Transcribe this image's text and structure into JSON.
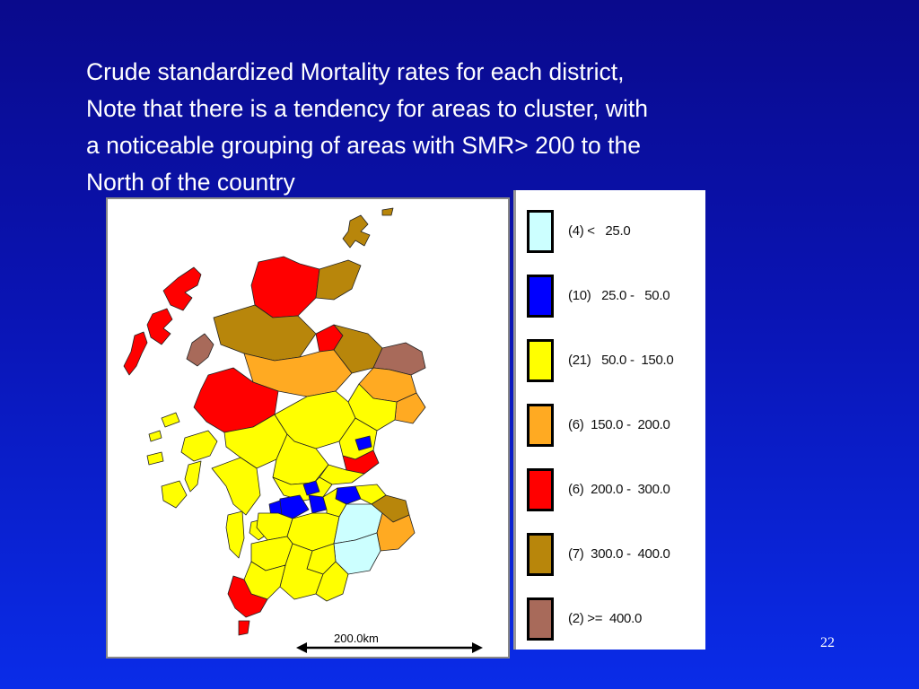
{
  "slide": {
    "caption_lines": [
      "Crude standardized Mortality rates for each district,",
      "Note that there is a tendency for areas to cluster, with",
      "a noticeable grouping of areas with SMR> 200 to the",
      "North of the country"
    ],
    "page_number": "22"
  },
  "map": {
    "scale_label": "200.0km"
  },
  "legend": {
    "items": [
      {
        "label": "(4) <   25.0",
        "color": "#ccffff"
      },
      {
        "label": "(10)   25.0 -   50.0",
        "color": "#0000ff"
      },
      {
        "label": "(21)   50.0 -  150.0",
        "color": "#ffff00"
      },
      {
        "label": "(6)  150.0 -  200.0",
        "color": "#ffaa22"
      },
      {
        "label": "(6)  200.0 -  300.0",
        "color": "#ff0000"
      },
      {
        "label": "(7)  300.0 -  400.0",
        "color": "#b8860b"
      },
      {
        "label": "(2) >=  400.0",
        "color": "#a86a5a"
      }
    ]
  }
}
